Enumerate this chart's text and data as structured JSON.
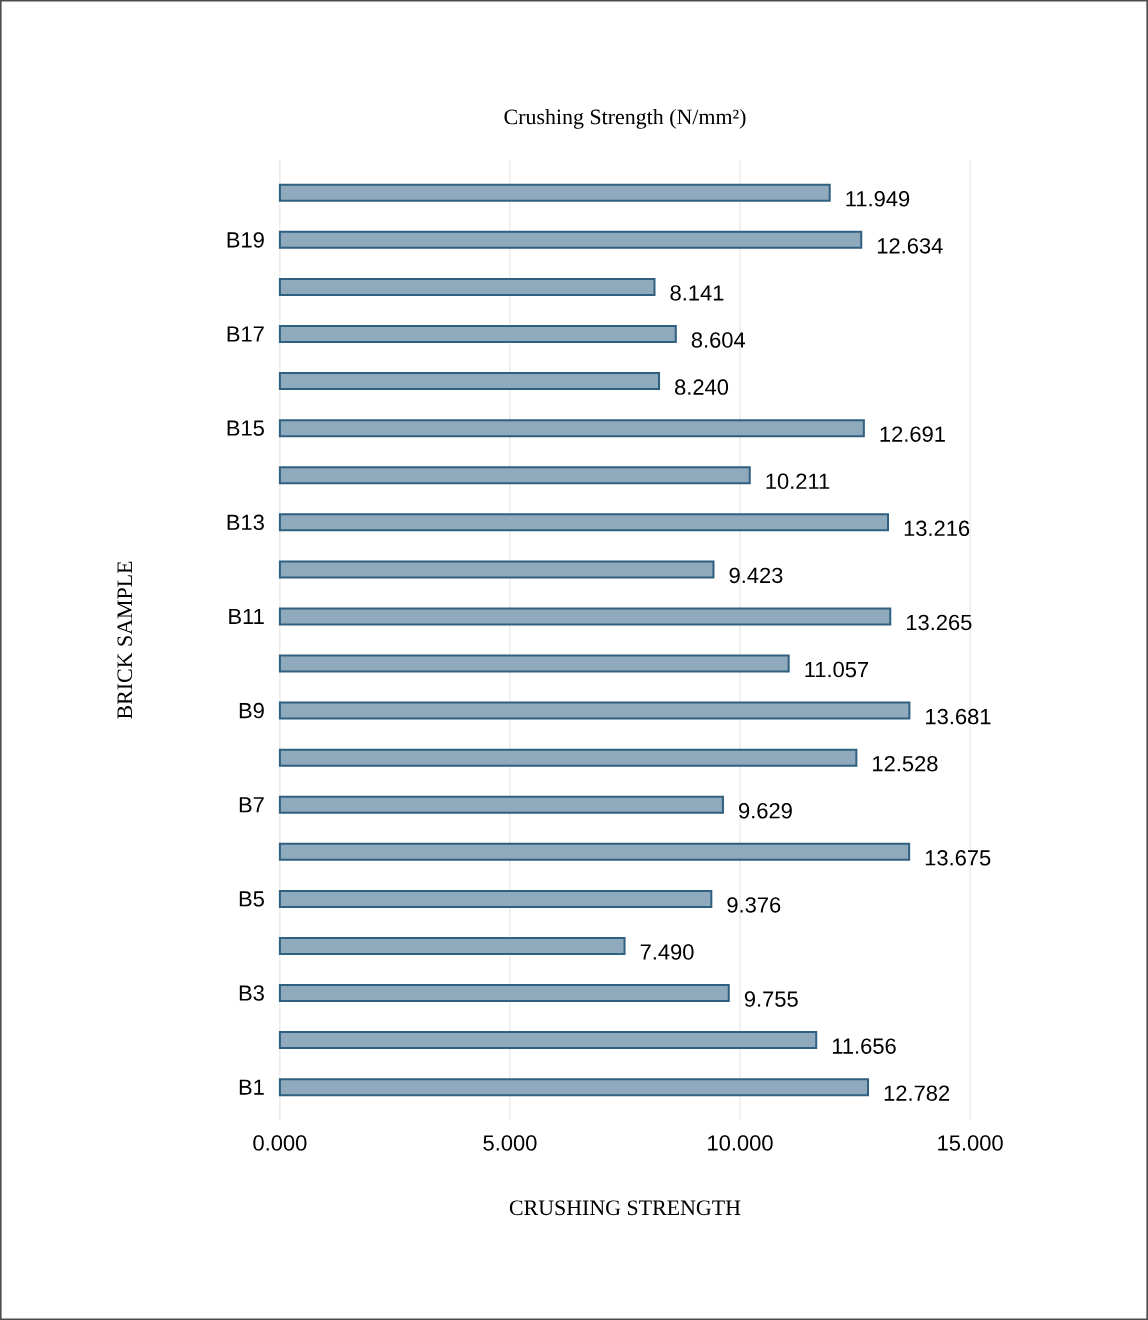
{
  "chart_data": {
    "type": "bar",
    "orientation": "horizontal",
    "title": "Crushing Strength (N/mm²)",
    "xlabel": "CRUSHING STRENGTH",
    "ylabel": "BRICK SAMPLE",
    "categories": [
      null,
      "B19",
      null,
      "B17",
      null,
      "B15",
      null,
      "B13",
      null,
      "B11",
      null,
      "B9",
      null,
      "B7",
      null,
      "B5",
      null,
      "B3",
      null,
      "B1"
    ],
    "values": [
      11.949,
      12.634,
      8.141,
      8.604,
      8.24,
      12.691,
      10.211,
      13.216,
      9.423,
      13.265,
      11.057,
      13.681,
      12.528,
      9.629,
      13.675,
      9.376,
      7.49,
      9.755,
      11.656,
      12.782
    ],
    "value_labels": [
      "11.949",
      "12.634",
      "8.141",
      "8.604",
      "8.240",
      "12.691",
      "10.211",
      "13.216",
      "9.423",
      "13.265",
      "11.057",
      "13.681",
      "12.528",
      "9.629",
      "13.675",
      "9.376",
      "7.490",
      "9.755",
      "11.656",
      "12.782"
    ],
    "color": "#8fa9bd",
    "xlim": [
      0,
      15
    ],
    "xticks": [
      {
        "value": 0,
        "label": "0.000"
      },
      {
        "value": 5,
        "label": "5.000"
      },
      {
        "value": 10,
        "label": "10.000"
      },
      {
        "value": 15,
        "label": "15.000"
      }
    ],
    "grid": "x"
  }
}
